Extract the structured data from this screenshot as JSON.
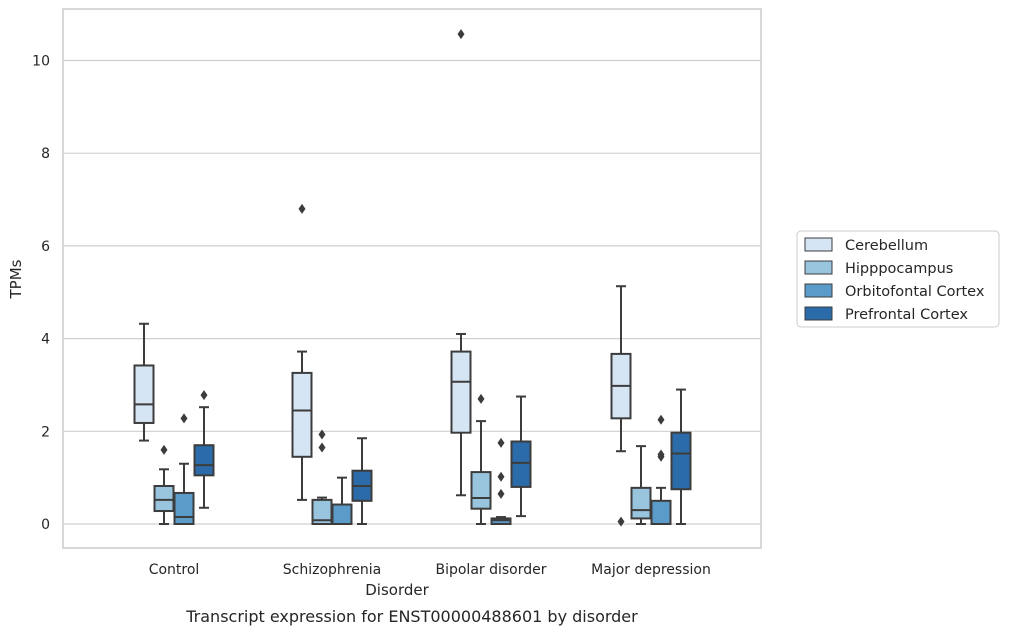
{
  "chart_data": {
    "type": "box",
    "xlabel": "Disorder",
    "ylabel": "TPMs",
    "caption": "Transcript expression for ENST00000488601 by disorder",
    "ylim": [
      -0.5,
      11.1
    ],
    "yticks": [
      "0",
      "2",
      "4",
      "6",
      "8",
      "10"
    ],
    "grid": "horizontal",
    "legend_position": "right",
    "categories": [
      "Control",
      "Schizophrenia",
      "Bipolar disorder",
      "Major depression"
    ],
    "series": [
      {
        "name": "Cerebellum",
        "color": "#d6e5f3",
        "boxes": [
          {
            "min": 1.8,
            "q1": 2.18,
            "median": 2.58,
            "q3": 3.42,
            "max": 4.32,
            "outliers": []
          },
          {
            "min": 0.52,
            "q1": 1.45,
            "median": 2.45,
            "q3": 3.26,
            "max": 3.72,
            "outliers": [
              6.8
            ]
          },
          {
            "min": 0.62,
            "q1": 1.97,
            "median": 3.07,
            "q3": 3.72,
            "max": 4.1,
            "outliers": [
              10.57
            ]
          },
          {
            "min": 1.57,
            "q1": 2.28,
            "median": 2.98,
            "q3": 3.67,
            "max": 5.13,
            "outliers": [
              0.05
            ]
          }
        ]
      },
      {
        "name": "Hipppocampus",
        "color": "#98c4de",
        "boxes": [
          {
            "min": 0.0,
            "q1": 0.28,
            "median": 0.52,
            "q3": 0.82,
            "max": 1.18,
            "outliers": [
              1.6
            ]
          },
          {
            "min": 0.0,
            "q1": 0.0,
            "median": 0.08,
            "q3": 0.52,
            "max": 0.57,
            "outliers": [
              1.93,
              1.65
            ]
          },
          {
            "min": 0.0,
            "q1": 0.33,
            "median": 0.56,
            "q3": 1.12,
            "max": 2.22,
            "outliers": [
              2.7
            ]
          },
          {
            "min": 0.0,
            "q1": 0.12,
            "median": 0.3,
            "q3": 0.78,
            "max": 1.68,
            "outliers": []
          }
        ]
      },
      {
        "name": "Orbitofontal Cortex",
        "color": "#5a9bc9",
        "boxes": [
          {
            "min": 0.0,
            "q1": 0.0,
            "median": 0.15,
            "q3": 0.67,
            "max": 1.3,
            "outliers": [
              2.28
            ]
          },
          {
            "min": 0.0,
            "q1": 0.0,
            "median": 0.0,
            "q3": 0.42,
            "max": 1.0,
            "outliers": []
          },
          {
            "min": 0.0,
            "q1": 0.0,
            "median": 0.08,
            "q3": 0.12,
            "max": 0.15,
            "outliers": [
              1.75,
              1.02,
              0.65
            ]
          },
          {
            "min": 0.0,
            "q1": 0.0,
            "median": 0.0,
            "q3": 0.5,
            "max": 0.78,
            "outliers": [
              2.25,
              1.5,
              1.45
            ]
          }
        ]
      },
      {
        "name": "Prefrontal Cortex",
        "color": "#2b6ba9",
        "boxes": [
          {
            "min": 0.35,
            "q1": 1.05,
            "median": 1.27,
            "q3": 1.7,
            "max": 2.52,
            "outliers": [
              2.78
            ]
          },
          {
            "min": 0.0,
            "q1": 0.5,
            "median": 0.82,
            "q3": 1.15,
            "max": 1.85,
            "outliers": []
          },
          {
            "min": 0.17,
            "q1": 0.8,
            "median": 1.32,
            "q3": 1.78,
            "max": 2.75,
            "outliers": []
          },
          {
            "min": 0.0,
            "q1": 0.75,
            "median": 1.52,
            "q3": 1.97,
            "max": 2.9,
            "outliers": []
          }
        ]
      }
    ]
  }
}
